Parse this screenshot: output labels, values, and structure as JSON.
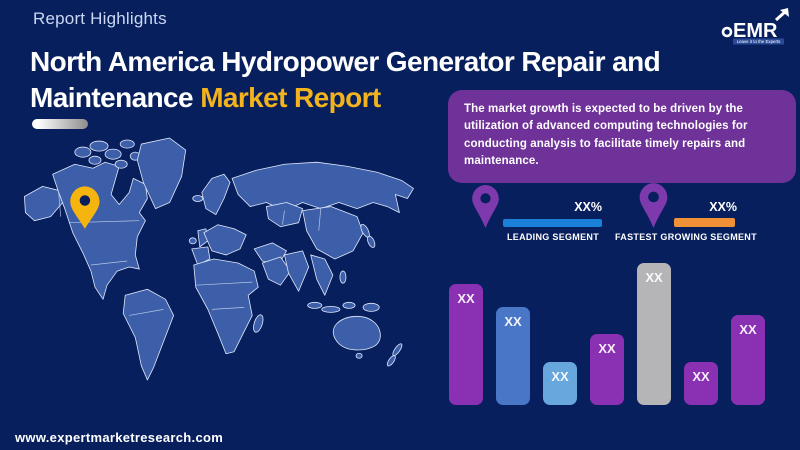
{
  "colors": {
    "background": "#081f5e",
    "title_accent": "#f2b31d",
    "eyebrow_text": "#ccd8f2",
    "info_box_bg": "#6f3299",
    "segment_pin": "#7e3aad",
    "map_land": "#3d5fa9",
    "map_border": "#dfe8fa",
    "map_pin": "#f6b40e"
  },
  "header": {
    "eyebrow": "Report Highlights",
    "title_line1": "North America Hydropower Generator Repair and",
    "title_line2_white": "Maintenance ",
    "title_line2_accent": "Market Report"
  },
  "logo": {
    "name": "EMR",
    "tagline": "Leave it to the Experts"
  },
  "info_box": {
    "text": "The market growth is expected to be driven by the utilization of advanced computing technologies for conducting analysis to facilitate timely repairs and maintenance."
  },
  "map": {
    "pin_region": "North America"
  },
  "segments": [
    {
      "label": "LEADING SEGMENT",
      "value": "XX%",
      "bar_color": "#1a80d8"
    },
    {
      "label": "FASTEST GROWING SEGMENT",
      "value": "XX%",
      "bar_color": "#f09138"
    }
  ],
  "chart_data": {
    "type": "bar",
    "title": "",
    "xlabel": "",
    "ylabel": "",
    "axes_visible": false,
    "categories": [
      "",
      "",
      "",
      "",
      "",
      "",
      ""
    ],
    "value_labels": [
      "XX",
      "XX",
      "XX",
      "XX",
      "XX",
      "XX",
      "XX"
    ],
    "relative_heights": [
      121,
      98,
      43,
      71,
      142,
      43,
      90
    ],
    "bar_colors": [
      "#8a30b2",
      "#4a76c8",
      "#67a7dd",
      "#8a30b2",
      "#b5b5b7",
      "#8a30b2",
      "#8a30b2"
    ]
  },
  "footer": {
    "website": "www.expertmarketresearch.com"
  }
}
